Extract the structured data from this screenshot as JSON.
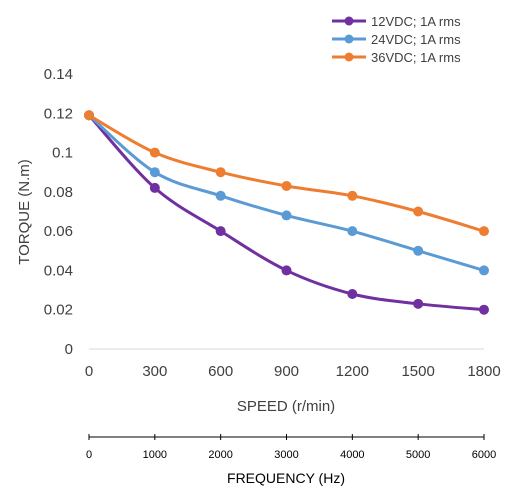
{
  "chart_data": {
    "type": "line",
    "smooth": true,
    "categories": [
      "0",
      "300",
      "600",
      "900",
      "1200",
      "1500",
      "1800"
    ],
    "xlabel": "SPEED (r/min)",
    "ylabel": "TORQUE (N.m)",
    "ylim": [
      0,
      0.14
    ],
    "yticks": [
      "0",
      "0.02",
      "0.04",
      "0.06",
      "0.08",
      "0.1",
      "0.12",
      "0.14"
    ],
    "grid": false,
    "legend_position": "top-right",
    "secondary_x_axis": {
      "label": "FREQUENCY (Hz)",
      "ticks": [
        "0",
        "1000",
        "2000",
        "3000",
        "4000",
        "5000",
        "6000"
      ]
    },
    "series": [
      {
        "name": "12VDC; 1A rms",
        "color": "#7030a0",
        "values": [
          0.119,
          0.082,
          0.06,
          0.04,
          0.028,
          0.023,
          0.02
        ]
      },
      {
        "name": "24VDC; 1A rms",
        "color": "#5b9bd5",
        "values": [
          0.119,
          0.09,
          0.078,
          0.068,
          0.06,
          0.05,
          0.04
        ]
      },
      {
        "name": "36VDC; 1A rms",
        "color": "#ed7d31",
        "values": [
          0.119,
          0.1,
          0.09,
          0.083,
          0.078,
          0.07,
          0.06
        ]
      }
    ]
  }
}
